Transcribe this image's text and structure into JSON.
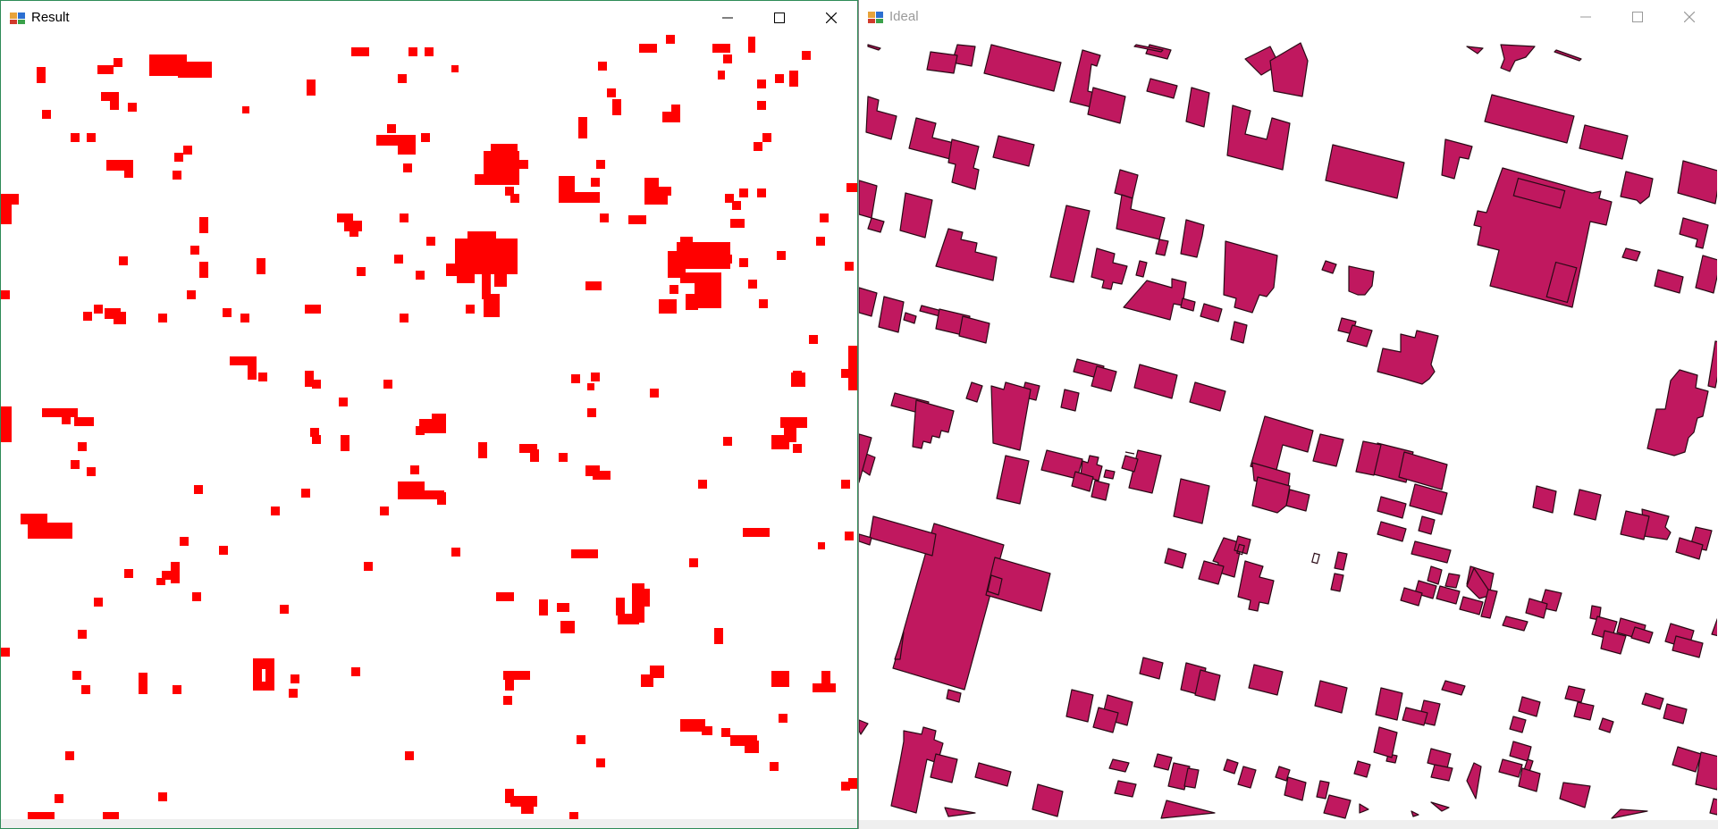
{
  "windows": {
    "result": {
      "title": "Result",
      "fill_color": "#ff0000",
      "controls": [
        "minimize-icon",
        "maximize-icon",
        "close-icon"
      ]
    },
    "ideal": {
      "title": "Ideal",
      "fill_color": "#c0185f",
      "stroke_color": "#2a0a16",
      "controls": [
        "minimize-icon",
        "maximize-icon",
        "close-icon"
      ]
    }
  }
}
